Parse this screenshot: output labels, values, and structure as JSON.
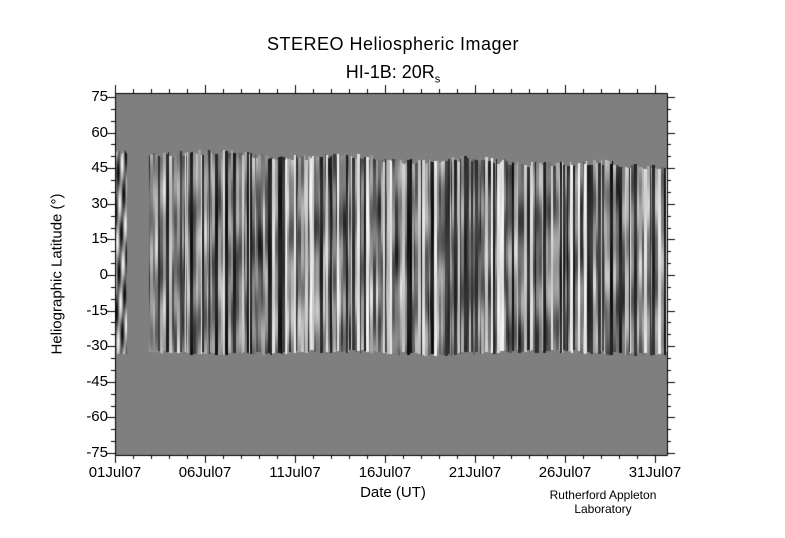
{
  "title": "STEREO Heliospheric Imager",
  "subtitle": {
    "text": "HI-1B: 20R",
    "subscript": "s"
  },
  "credit": "Rutherford Appleton Laboratory",
  "colors": {
    "background": "#ffffff",
    "plot_background_gray": "#7f7f7f",
    "axis": "#000000",
    "text": "#000000",
    "data_min_black": "#000000",
    "data_max_white": "#ffffff"
  },
  "chart_data": {
    "type": "heatmap",
    "title": "STEREO Heliospheric Imager",
    "subtitle": "HI-1B: 20Rs",
    "xlabel": "Date (UT)",
    "ylabel": "Heliographic Latitude (°)",
    "x_ticks": [
      "01Jul07",
      "06Jul07",
      "11Jul07",
      "16Jul07",
      "21Jul07",
      "26Jul07",
      "31Jul07"
    ],
    "x_tick_days": [
      1,
      6,
      11,
      16,
      21,
      26,
      31
    ],
    "x_minor_interval_days": 1,
    "x_range_days": [
      1,
      31.7
    ],
    "y_ticks": [
      75,
      60,
      45,
      30,
      15,
      0,
      -15,
      -30,
      -45,
      -60,
      -75
    ],
    "y_minor_interval": 5,
    "y_range": [
      -76.5,
      76.5
    ],
    "tick_direction": "out",
    "grid": false,
    "legend": false,
    "value_description": "White-light running-difference intensity strip (J-map style): dense vertical black/white striations over a mid-gray no-data background",
    "data_coverage": [
      {
        "segment": "early-sliver",
        "start_day": 1.0,
        "end_day": 1.6,
        "lat_top": 52,
        "lat_bottom": -33
      },
      {
        "segment": "main-block",
        "start_day": 2.9,
        "end_day": 31.66,
        "lat_top_start": 52,
        "lat_top_end": 46,
        "lat_bottom": -32.5
      }
    ]
  }
}
